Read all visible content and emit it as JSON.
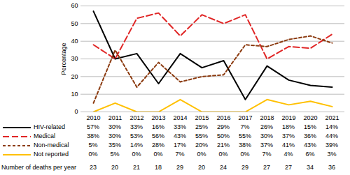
{
  "chart_data": {
    "type": "line",
    "y_label": "Percentage",
    "categories": [
      "2010",
      "2011",
      "2012",
      "2013",
      "2014",
      "2015",
      "2016",
      "2017",
      "2018",
      "2019",
      "2020",
      "2021"
    ],
    "ylim": [
      0,
      60
    ],
    "yticks": [
      0,
      10,
      20,
      30,
      40,
      50,
      60
    ],
    "grid": true,
    "data_labels": true,
    "series": [
      {
        "name": "HIV-related",
        "color": "#000000",
        "line_style": "solid",
        "values": [
          57,
          30,
          33,
          16,
          33,
          25,
          29,
          7,
          26,
          18,
          15,
          14
        ],
        "value_labels": [
          "57%",
          "30%",
          "33%",
          "16%",
          "33%",
          "25%",
          "29%",
          "7%",
          "26%",
          "18%",
          "15%",
          "14%"
        ]
      },
      {
        "name": "Medical",
        "color": "#e02626",
        "line_style": "long-dash",
        "values": [
          38,
          30,
          53,
          56,
          43,
          55,
          50,
          55,
          30,
          37,
          36,
          44
        ],
        "value_labels": [
          "38%",
          "30%",
          "53%",
          "56%",
          "43%",
          "55%",
          "50%",
          "55%",
          "30%",
          "37%",
          "36%",
          "44%"
        ]
      },
      {
        "name": "Non-medical",
        "color": "#8b3a0f",
        "line_style": "dash",
        "values": [
          5,
          35,
          14,
          28,
          17,
          20,
          21,
          38,
          37,
          41,
          43,
          39
        ],
        "value_labels": [
          "5%",
          "35%",
          "14%",
          "28%",
          "17%",
          "20%",
          "21%",
          "38%",
          "37%",
          "41%",
          "43%",
          "39%"
        ]
      },
      {
        "name": "Not reported",
        "color": "#ffc000",
        "line_style": "solid",
        "values": [
          0,
          5,
          0,
          0,
          7,
          0,
          0,
          0,
          7,
          4,
          6,
          3
        ],
        "value_labels": [
          "0%",
          "5%",
          "0%",
          "0%",
          "7%",
          "0%",
          "0%",
          "0%",
          "7%",
          "4%",
          "6%",
          "3%"
        ]
      }
    ],
    "deaths": {
      "label": "Number of deaths per year",
      "values": [
        23,
        20,
        21,
        18,
        29,
        20,
        24,
        29,
        27,
        27,
        34,
        36
      ]
    }
  }
}
